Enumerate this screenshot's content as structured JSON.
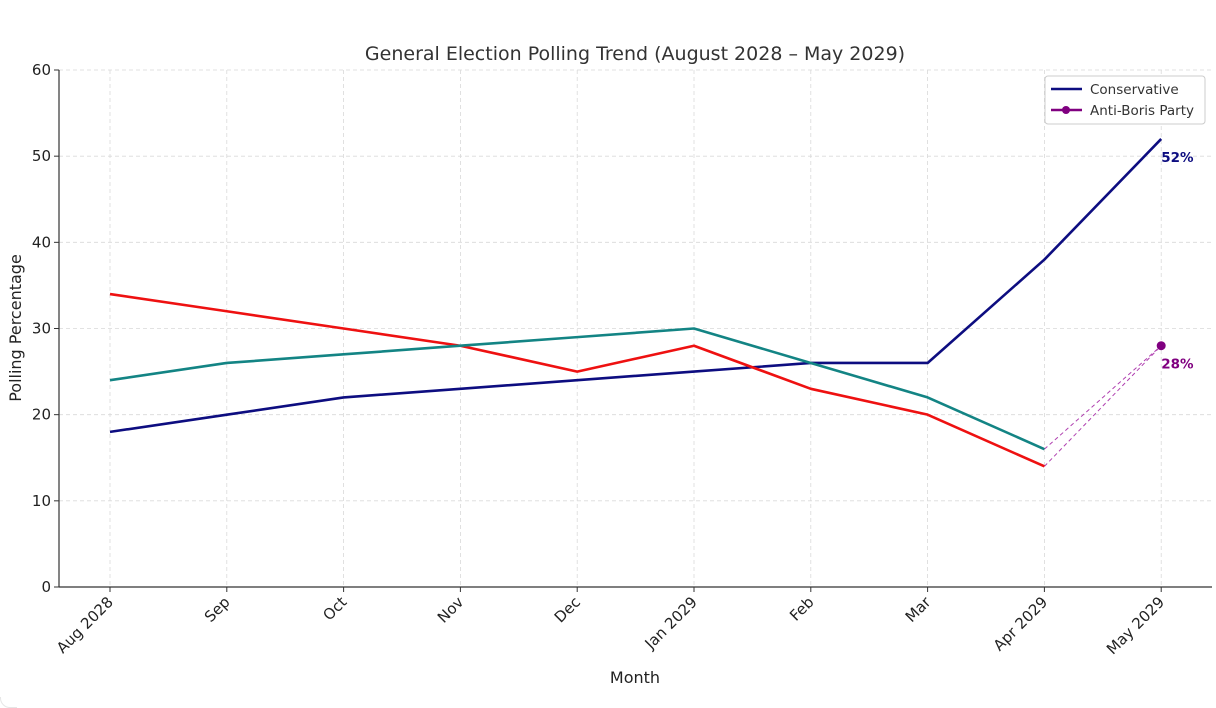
{
  "chart_data": {
    "type": "line",
    "title": "General Election Polling Trend (August 2028 – May 2029)",
    "xlabel": "Month",
    "ylabel": "Polling Percentage",
    "ylim": [
      0,
      60
    ],
    "yticks": [
      0,
      10,
      20,
      30,
      40,
      50,
      60
    ],
    "grid": true,
    "legend_position": "top-right",
    "categories": [
      "Aug 2028",
      "Sep",
      "Oct",
      "Nov",
      "Dec",
      "Jan 2029",
      "Feb",
      "Mar",
      "Apr 2029",
      "May 2029"
    ],
    "series": [
      {
        "name": "Conservative",
        "color": "#0d0d80",
        "style": "solid",
        "in_legend": true,
        "values": [
          18,
          20,
          22,
          23,
          24,
          25,
          26,
          26,
          38,
          52
        ]
      },
      {
        "name": "",
        "color": "#ee1111",
        "style": "solid",
        "in_legend": false,
        "values": [
          34,
          32,
          30,
          28,
          25,
          28,
          23,
          20,
          14,
          null
        ]
      },
      {
        "name": "",
        "color": "#138484",
        "style": "solid",
        "in_legend": false,
        "values": [
          24,
          26,
          27,
          28,
          29,
          30,
          26,
          22,
          16,
          null
        ]
      },
      {
        "name": "Anti-Boris Party",
        "color": "#800080",
        "style": "marker",
        "in_legend": true,
        "values": [
          null,
          null,
          null,
          null,
          null,
          null,
          null,
          null,
          null,
          28
        ]
      }
    ],
    "connectors": [
      {
        "from_series": 1,
        "to_series": 3,
        "from_index": 8,
        "to_index": 9,
        "color": "#b040b0"
      },
      {
        "from_series": 2,
        "to_series": 3,
        "from_index": 8,
        "to_index": 9,
        "color": "#b040b0"
      }
    ],
    "annotations": [
      {
        "text": "52%",
        "index": 9,
        "value": 52,
        "color": "#0d0d80"
      },
      {
        "text": "28%",
        "index": 9,
        "value": 28,
        "color": "#800080"
      }
    ]
  }
}
